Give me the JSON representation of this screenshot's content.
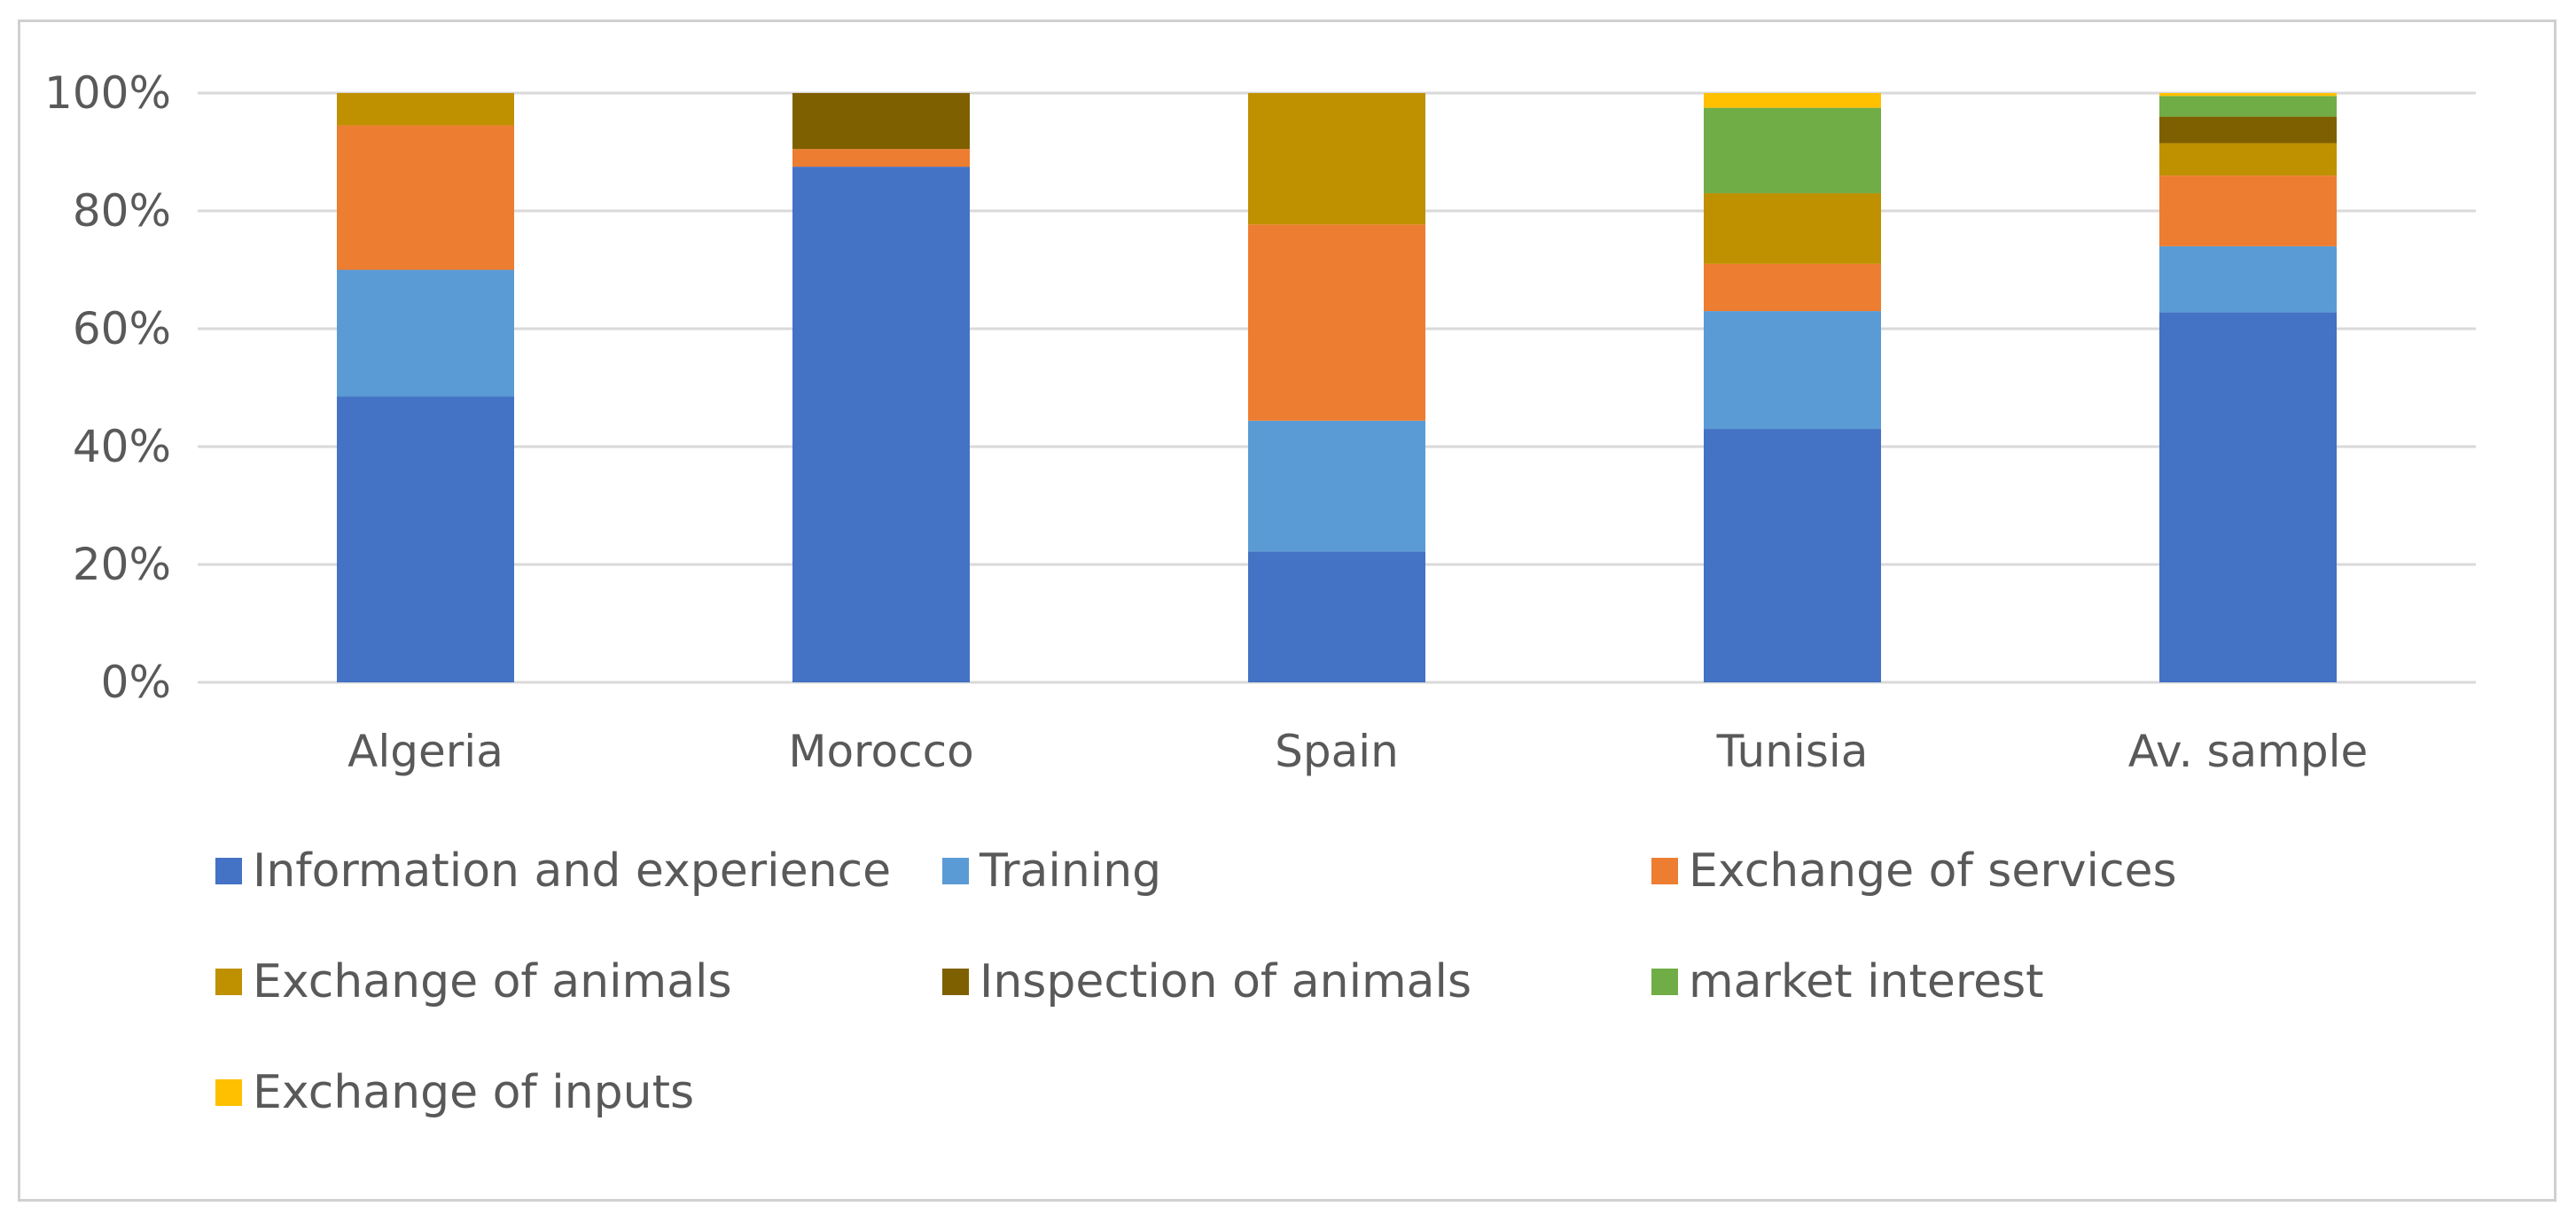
{
  "chart_data": {
    "type": "bar",
    "stacked": true,
    "percent_stacked": true,
    "title": "",
    "xlabel": "",
    "ylabel": "",
    "ylim": [
      0,
      100
    ],
    "yticks": [
      "0%",
      "20%",
      "40%",
      "60%",
      "80%",
      "100%"
    ],
    "yticks_values": [
      0,
      20,
      40,
      60,
      80,
      100
    ],
    "grid": true,
    "legend_position": "bottom",
    "categories": [
      "Algeria",
      "Morocco",
      "Spain",
      "Tunisia",
      "Av. sample"
    ],
    "series": [
      {
        "name": "Information and experience",
        "color": "#4472C4",
        "values": [
          48.5,
          87.5,
          22.2,
          43.0,
          62.8
        ]
      },
      {
        "name": "Training",
        "color": "#5B9BD5",
        "values": [
          21.5,
          0.0,
          22.2,
          20.0,
          11.2
        ]
      },
      {
        "name": "Exchange of services",
        "color": "#ED7D31",
        "values": [
          24.5,
          3.0,
          33.3,
          8.0,
          12.0
        ]
      },
      {
        "name": "Exchange of animals",
        "color": "#BF9000",
        "values": [
          5.5,
          0.0,
          22.3,
          12.0,
          5.5
        ]
      },
      {
        "name": "Inspection of animals",
        "color": "#7F6000",
        "values": [
          0.0,
          9.5,
          0.0,
          0.0,
          4.5
        ]
      },
      {
        "name": "market interest",
        "color": "#70AD47",
        "values": [
          0.0,
          0.0,
          0.0,
          14.5,
          3.5
        ]
      },
      {
        "name": "Exchange of inputs",
        "color": "#FFC000",
        "values": [
          0.0,
          0.0,
          0.0,
          2.5,
          0.5
        ]
      }
    ]
  }
}
